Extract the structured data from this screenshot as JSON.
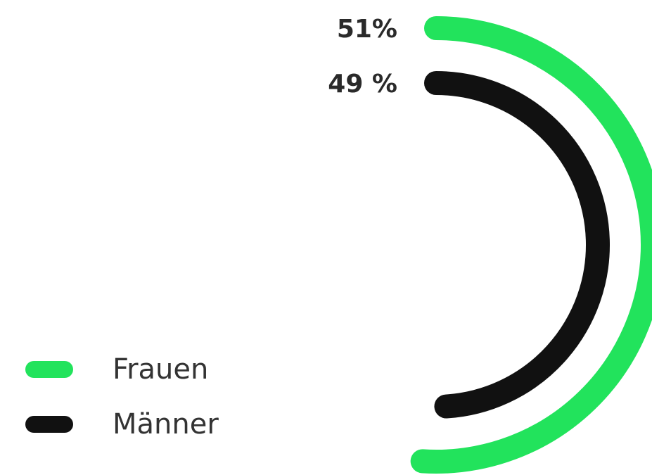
{
  "chart_data": {
    "type": "radial_bar",
    "ylim": [
      0,
      100
    ],
    "series": [
      {
        "name": "Frauen",
        "color": "#22e35c",
        "values": [
          51
        ],
        "value_labels": [
          "51%"
        ]
      },
      {
        "name": "Männer",
        "color": "#111111",
        "values": [
          49
        ],
        "value_labels": [
          "49 %"
        ]
      }
    ]
  }
}
